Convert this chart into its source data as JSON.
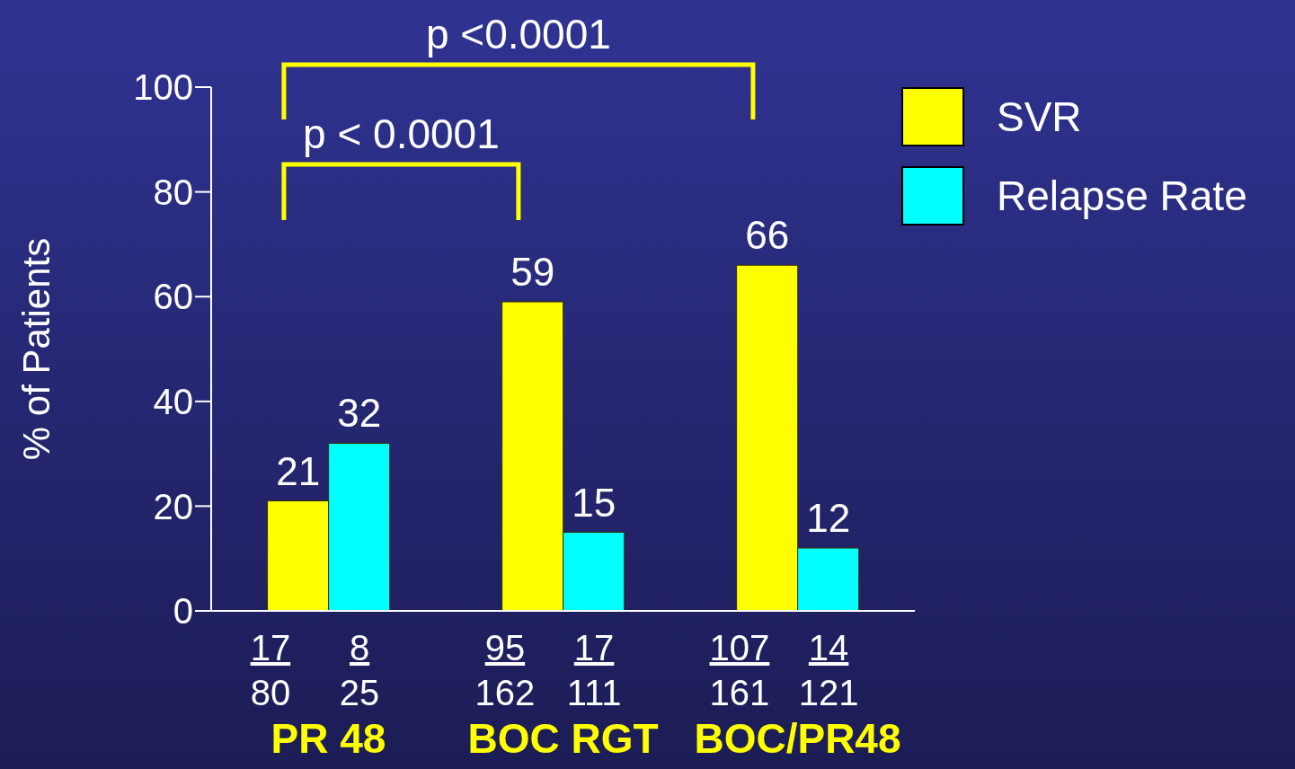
{
  "chart_data": {
    "type": "bar",
    "ylabel": "% of Patients",
    "categories": [
      "PR 48",
      "BOC RGT",
      "BOC/PR48"
    ],
    "series": [
      {
        "name": "SVR",
        "color": "#ffff00",
        "values": [
          21,
          59,
          66
        ]
      },
      {
        "name": "Relapse Rate",
        "color": "#00ffff",
        "values": [
          32,
          15,
          12
        ]
      }
    ],
    "ylim": [
      0,
      100
    ],
    "yticks": [
      0,
      20,
      40,
      60,
      80,
      100
    ],
    "grid": false,
    "legend": "top right",
    "data_labels": true,
    "annotations": [
      "p <0.0001",
      "p < 0.0001",
      "17",
      "80",
      "8",
      "25",
      "95",
      "162",
      "17",
      "111",
      "107",
      "161",
      "14",
      "121"
    ]
  }
}
